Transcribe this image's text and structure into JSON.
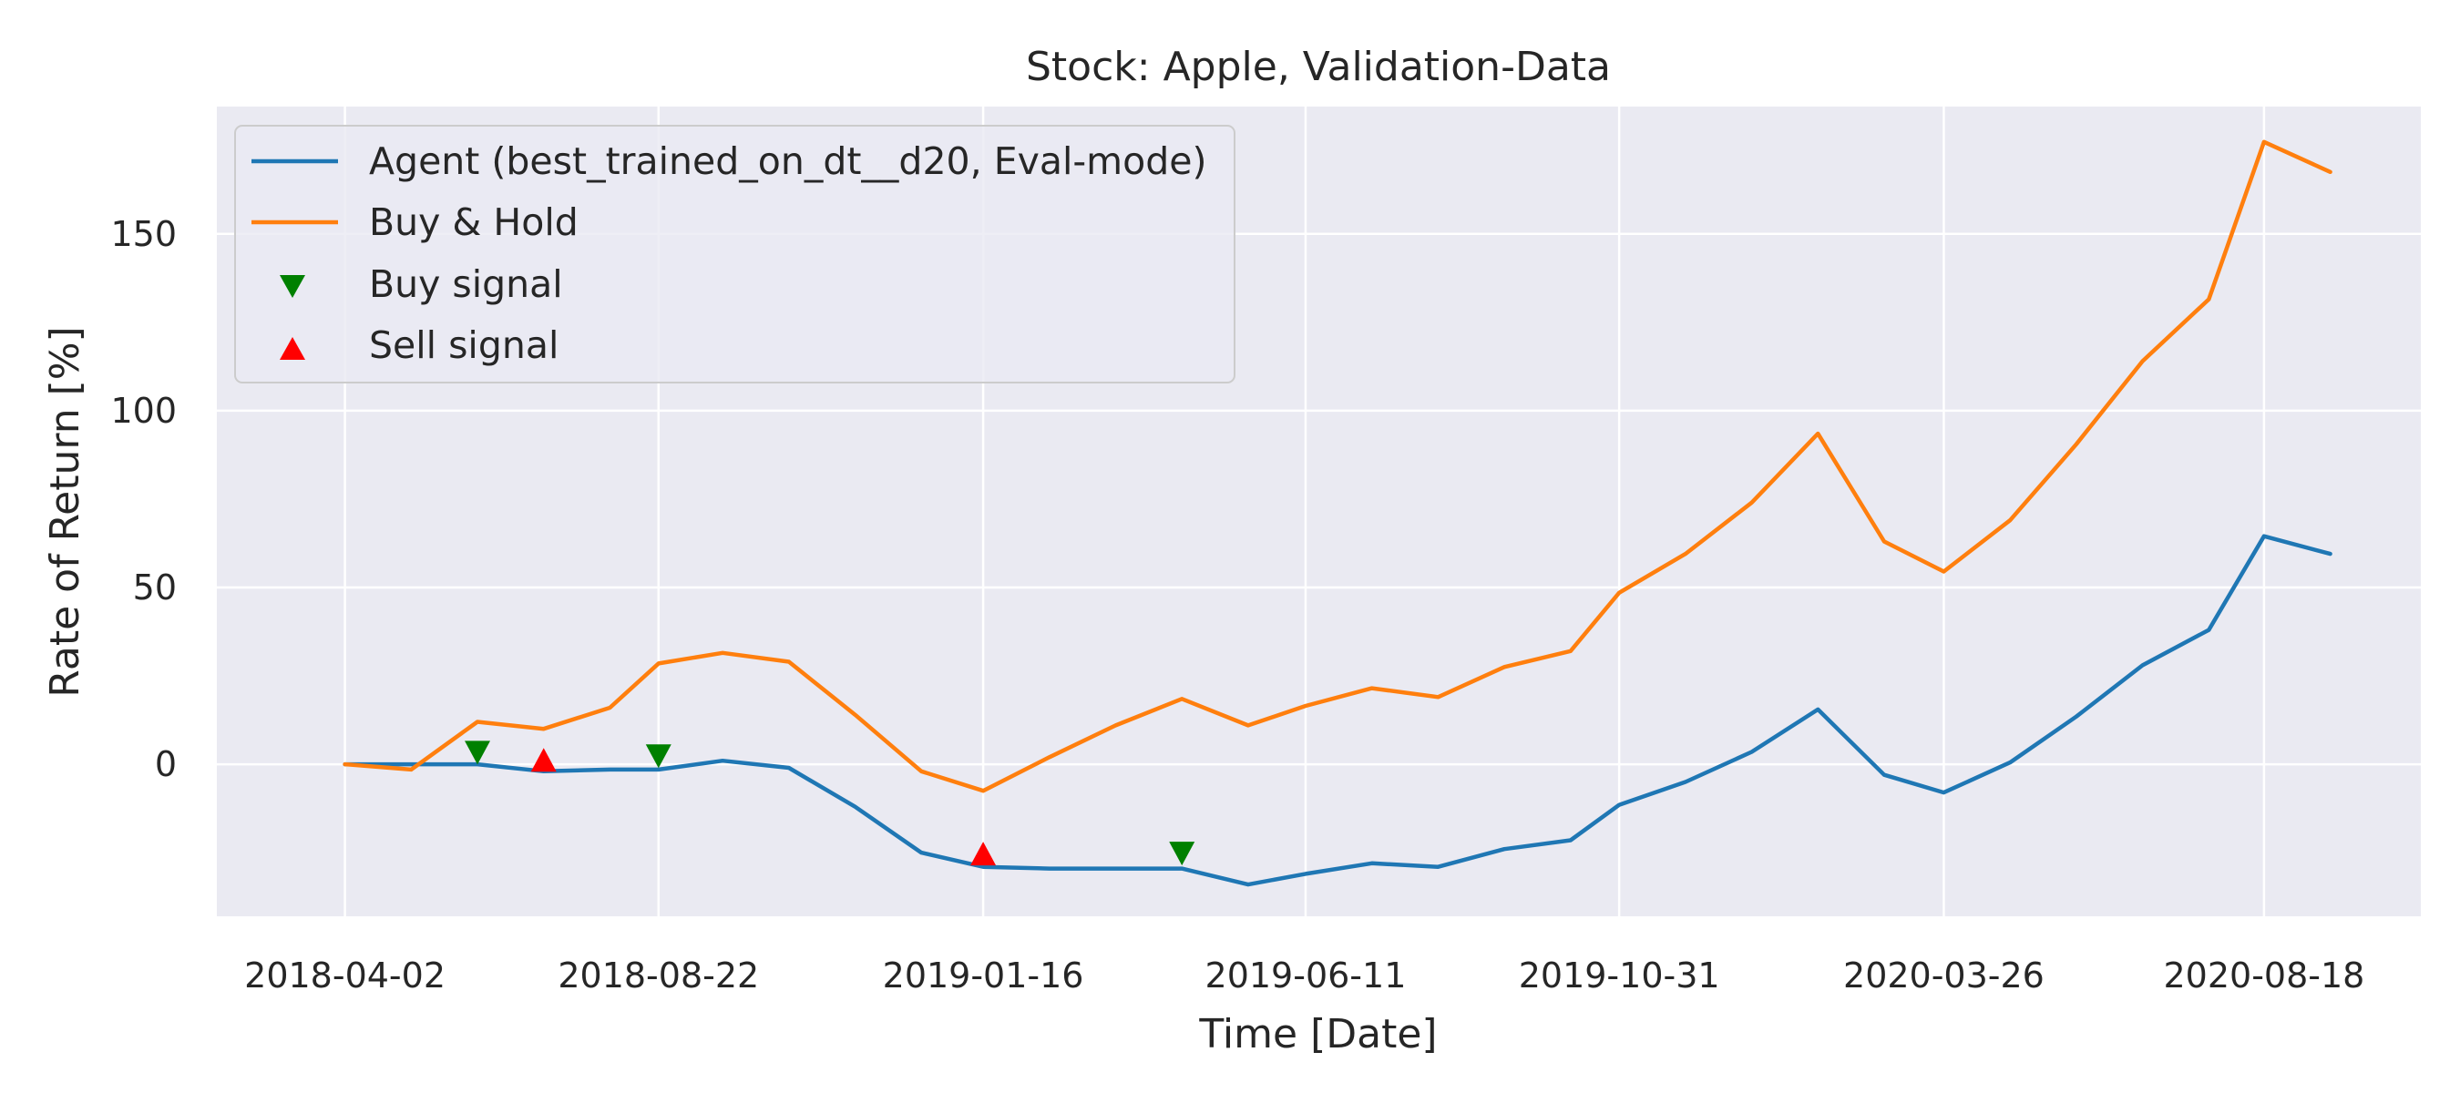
{
  "chart_data": {
    "type": "line",
    "title": "Stock: Apple, Validation-Data",
    "xlabel": "Time [Date]",
    "ylabel": "Rate of Return [%]",
    "x": [
      "2018-04-02",
      "2018-05-13",
      "2018-06-23",
      "2018-08-02",
      "2018-09-12",
      "2018-10-22",
      "2018-12-02",
      "2019-01-11",
      "2019-02-21",
      "2019-04-02",
      "2019-05-12",
      "2019-06-22",
      "2019-08-01",
      "2019-09-10",
      "2019-10-20",
      "2019-11-29",
      "2020-01-08",
      "2020-02-17",
      "2020-03-28",
      "2020-05-07",
      "2020-06-16",
      "2020-07-26",
      "2020-09-04"
    ],
    "x_dates": [
      "2018-04-02",
      "2018-04-22",
      "2018-05-13",
      "2018-06-02",
      "2018-06-23",
      "2018-07-13",
      "2018-08-02",
      "2018-08-22",
      "2018-09-12",
      "2018-10-02",
      "2018-10-22",
      "2018-11-11",
      "2018-12-02",
      "2018-12-22",
      "2019-01-11",
      "2019-01-31",
      "2019-02-21",
      "2019-03-13",
      "2019-04-02",
      "2019-04-22",
      "2019-05-12",
      "2019-06-01",
      "2019-06-22",
      "2019-07-12",
      "2019-08-01",
      "2019-08-21",
      "2019-09-10",
      "2019-09-30",
      "2019-10-20",
      "2019-11-09",
      "2019-11-29",
      "2019-12-19",
      "2020-01-08",
      "2020-01-28",
      "2020-02-17",
      "2020-03-08",
      "2020-03-28",
      "2020-04-17",
      "2020-05-07",
      "2020-05-27",
      "2020-06-16",
      "2020-07-06",
      "2020-07-26",
      "2020-08-15",
      "2020-09-04"
    ],
    "series": [
      {
        "name": "Agent (best_trained_on_dt__d20, Eval-mode)",
        "color": "#1f77b4",
        "x": [
          "2018-04-02",
          "2018-05-02",
          "2018-06-01",
          "2018-07-01",
          "2018-07-31",
          "2018-08-22",
          "2018-09-20",
          "2018-10-20",
          "2018-11-19",
          "2018-12-19",
          "2019-01-16",
          "2019-02-15",
          "2019-03-17",
          "2019-04-16",
          "2019-05-16",
          "2019-06-11",
          "2019-07-11",
          "2019-08-10",
          "2019-09-09",
          "2019-10-09",
          "2019-10-31",
          "2019-11-30",
          "2019-12-30",
          "2020-01-29",
          "2020-02-28",
          "2020-03-26",
          "2020-04-25",
          "2020-05-25",
          "2020-06-24",
          "2020-07-24",
          "2020-08-18",
          "2020-09-17"
        ],
        "values": [
          0,
          0,
          0,
          -2,
          -1.5,
          -1.5,
          1,
          -1,
          -12,
          -25,
          -29,
          -29.5,
          -29.5,
          -29.5,
          -34,
          -31,
          -28,
          -29,
          -24,
          -21.5,
          -11.5,
          -5,
          3.5,
          15.5,
          -3,
          -8,
          0.5,
          13.5,
          28,
          38,
          64.5,
          59.5
        ]
      },
      {
        "name": "Buy & Hold",
        "color": "#ff7f0e",
        "x": [
          "2018-04-02",
          "2018-05-02",
          "2018-06-01",
          "2018-07-01",
          "2018-07-31",
          "2018-08-22",
          "2018-09-20",
          "2018-10-20",
          "2018-11-19",
          "2018-12-19",
          "2019-01-16",
          "2019-02-15",
          "2019-03-17",
          "2019-04-16",
          "2019-05-16",
          "2019-06-11",
          "2019-07-11",
          "2019-08-10",
          "2019-09-09",
          "2019-10-09",
          "2019-10-31",
          "2019-11-30",
          "2019-12-30",
          "2020-01-29",
          "2020-02-28",
          "2020-03-26",
          "2020-04-25",
          "2020-05-25",
          "2020-06-24",
          "2020-07-24",
          "2020-08-18",
          "2020-09-17"
        ],
        "values": [
          0,
          -1.5,
          12,
          10,
          16,
          28.5,
          31.5,
          29,
          14,
          -2,
          -7.5,
          2,
          11,
          18.5,
          11,
          16.5,
          21.5,
          19,
          27.5,
          32,
          48.5,
          59.5,
          74,
          93.5,
          63,
          54.5,
          69,
          90.5,
          114,
          131.5,
          176,
          167.5
        ]
      }
    ],
    "buy_signals": [
      {
        "x": "2018-06-01",
        "y": 3
      },
      {
        "x": "2018-08-22",
        "y": 2
      },
      {
        "x": "2019-04-16",
        "y": -25.5
      }
    ],
    "sell_signals": [
      {
        "x": "2018-07-01",
        "y": 1.5
      },
      {
        "x": "2019-01-16",
        "y": -25
      }
    ],
    "buy_signal_label": "Buy signal",
    "sell_signal_label": "Sell signal",
    "buy_signal_color": "#008000",
    "sell_signal_color": "#ff0000",
    "x_ticks": [
      "2018-04-02",
      "2018-08-22",
      "2019-01-16",
      "2019-06-11",
      "2019-10-31",
      "2020-03-26",
      "2020-08-18"
    ],
    "y_ticks": [
      0,
      50,
      100,
      150
    ],
    "xlim": [
      "2018-02-03",
      "2020-10-28"
    ],
    "ylim": [
      -43,
      186
    ],
    "grid": true,
    "legend_position": "top-left",
    "plot_background": "#eaeaf2",
    "grid_color": "#ffffff"
  }
}
